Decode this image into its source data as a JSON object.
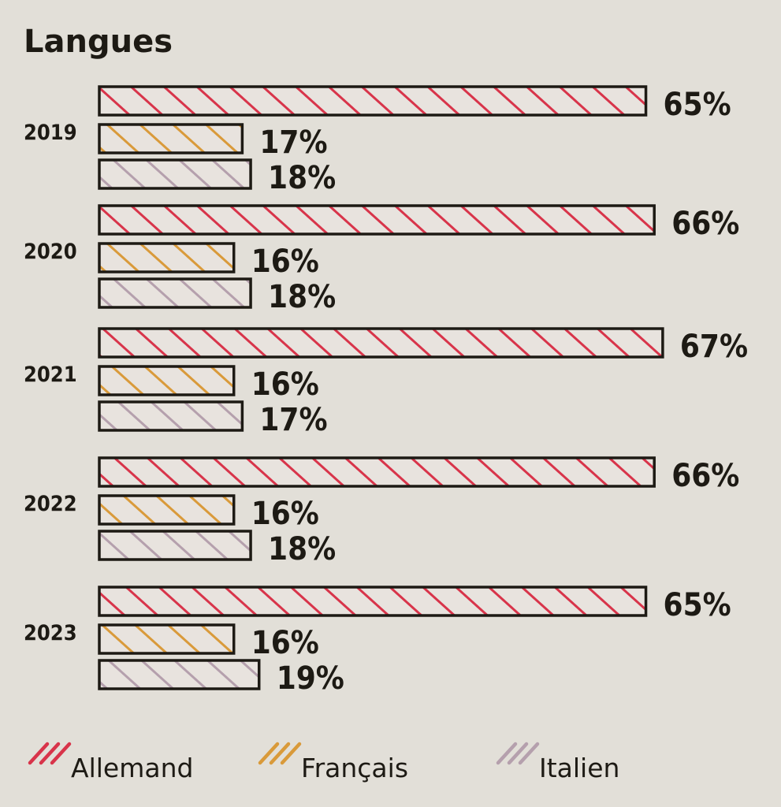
{
  "chart_data": {
    "type": "bar",
    "orientation": "horizontal",
    "title": "Langues",
    "categories": [
      "2019",
      "2020",
      "2021",
      "2022",
      "2023"
    ],
    "series": [
      {
        "name": "Allemand",
        "color": "#d8344a",
        "values": [
          65,
          66,
          67,
          66,
          65
        ],
        "labels": [
          "65%",
          "66%",
          "67%",
          "66%",
          "65%"
        ]
      },
      {
        "name": "Français",
        "color": "#d99a3a",
        "values": [
          17,
          16,
          16,
          16,
          16
        ],
        "labels": [
          "17%",
          "16%",
          "16%",
          "16%",
          "16%"
        ]
      },
      {
        "name": "Italien",
        "color": "#b5a0ad",
        "values": [
          18,
          18,
          17,
          18,
          19
        ],
        "labels": [
          "18%",
          "18%",
          "17%",
          "18%",
          "19%"
        ]
      }
    ],
    "xlim": [
      0,
      67
    ],
    "legend": "bottom",
    "grid": false
  }
}
